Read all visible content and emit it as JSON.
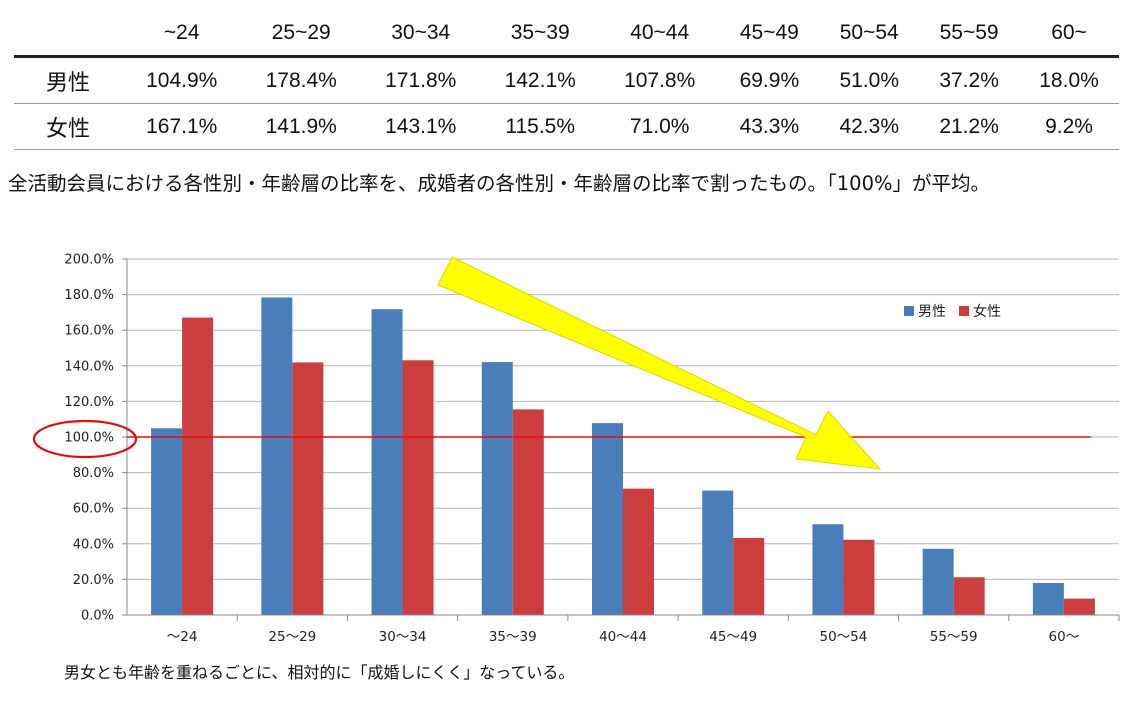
{
  "table": {
    "headers": [
      "~24",
      "25~29",
      "30~34",
      "35~39",
      "40~44",
      "45~49",
      "50~54",
      "55~59",
      "60~"
    ],
    "rows": [
      {
        "label": "男性",
        "cells": [
          "104.9%",
          "178.4%",
          "171.8%",
          "142.1%",
          "107.8%",
          "69.9%",
          "51.0%",
          "37.2%",
          "18.0%"
        ]
      },
      {
        "label": "女性",
        "cells": [
          "167.1%",
          "141.9%",
          "143.1%",
          "115.5%",
          "71.0%",
          "43.3%",
          "42.3%",
          "21.2%",
          "9.2%"
        ]
      }
    ]
  },
  "note": "全活動会員における各性別・年齢層の比率を、成婚者の各性別・年齢層の比率で割ったもの。「100%」が平均。",
  "chart_data": {
    "type": "bar",
    "categories": [
      "〜24",
      "25〜29",
      "30〜34",
      "35〜39",
      "40〜44",
      "45〜49",
      "50〜54",
      "55〜59",
      "60〜"
    ],
    "series": [
      {
        "name": "男性",
        "color": "#4a7ebb",
        "values": [
          104.9,
          178.4,
          171.8,
          142.1,
          107.8,
          69.9,
          51.0,
          37.2,
          18.0
        ]
      },
      {
        "name": "女性",
        "color": "#cc3d3d",
        "values": [
          167.1,
          141.9,
          143.1,
          115.5,
          71.0,
          43.3,
          42.3,
          21.2,
          9.2
        ]
      }
    ],
    "ylim": [
      0,
      200
    ],
    "yticks": [
      "0.0%",
      "20.0%",
      "40.0%",
      "60.0%",
      "80.0%",
      "100.0%",
      "120.0%",
      "140.0%",
      "160.0%",
      "180.0%",
      "200.0%"
    ],
    "reference_line": 100,
    "reference_color": "#dd1111",
    "highlight_circle_color": "#dd1111",
    "trend_arrow_color": "#ffff00",
    "grid": true,
    "legend_position": "top-right"
  },
  "caption": "男女とも年齢を重ねるごとに、相対的に「成婚しにくく」なっている。"
}
